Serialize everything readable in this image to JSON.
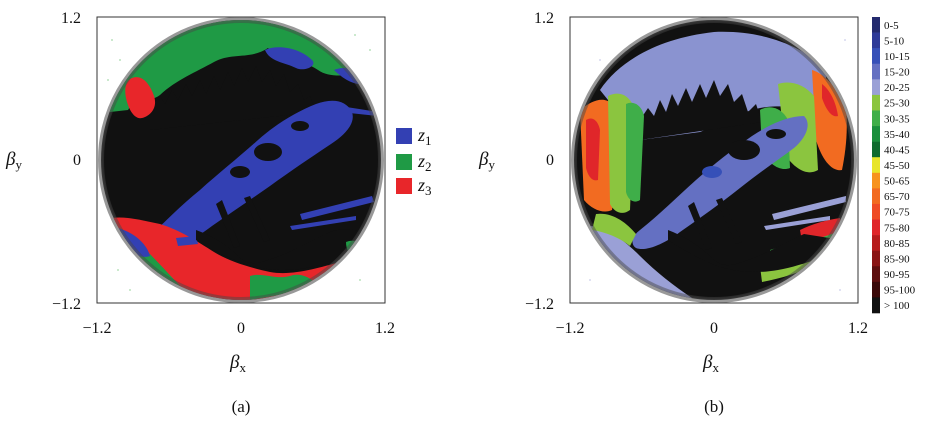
{
  "chart_data": [
    {
      "type": "scatter",
      "panel_label": "(a)",
      "xlabel": "β",
      "xlabel_sub": "x",
      "ylabel": "β",
      "ylabel_sub": "y",
      "xlim": [
        -1.2,
        1.2
      ],
      "ylim": [
        -1.2,
        1.2
      ],
      "x_ticks": [
        "−1.2",
        "0",
        "1.2"
      ],
      "y_ticks": [
        "1.2",
        "0",
        "−1.2"
      ],
      "legend_placement": "right",
      "legend": [
        {
          "name": "z",
          "sub": "1",
          "color": "#3340b3"
        },
        {
          "name": "z",
          "sub": "2",
          "color": "#1f9a45"
        },
        {
          "name": "z",
          "sub": "3",
          "color": "#e8262a"
        }
      ],
      "background_color": "#111111"
    },
    {
      "type": "heatmap",
      "panel_label": "(b)",
      "xlabel": "β",
      "xlabel_sub": "x",
      "ylabel": "β",
      "ylabel_sub": "y",
      "xlim": [
        -1.2,
        1.2
      ],
      "ylim": [
        -1.2,
        1.2
      ],
      "x_ticks": [
        "−1.2",
        "0",
        "1.2"
      ],
      "y_ticks": [
        "1.2",
        "0",
        "−1.2"
      ],
      "colorbar_placement": "right",
      "colorbar": [
        {
          "label": "0-5",
          "color": "#232a6e"
        },
        {
          "label": "5-10",
          "color": "#2e3a98"
        },
        {
          "label": "10-15",
          "color": "#3650b8"
        },
        {
          "label": "15-20",
          "color": "#6470c2"
        },
        {
          "label": "20-25",
          "color": "#9aa0d6"
        },
        {
          "label": "25-30",
          "color": "#8bc53f"
        },
        {
          "label": "30-35",
          "color": "#3fae49"
        },
        {
          "label": "35-40",
          "color": "#1a8f3c"
        },
        {
          "label": "40-45",
          "color": "#0f6b2e"
        },
        {
          "label": "45-50",
          "color": "#e8e52a"
        },
        {
          "label": "50-65",
          "color": "#f7931e"
        },
        {
          "label": "65-70",
          "color": "#f26b21"
        },
        {
          "label": "70-75",
          "color": "#ef4b25"
        },
        {
          "label": "75-80",
          "color": "#e0262a"
        },
        {
          "label": "80-85",
          "color": "#b71c1c"
        },
        {
          "label": "85-90",
          "color": "#8a1414"
        },
        {
          "label": "90-95",
          "color": "#5e0e0e"
        },
        {
          "label": "95-100",
          "color": "#3a0808"
        },
        {
          "label": "> 100",
          "color": "#111111"
        }
      ],
      "background_color": "#111111"
    }
  ]
}
